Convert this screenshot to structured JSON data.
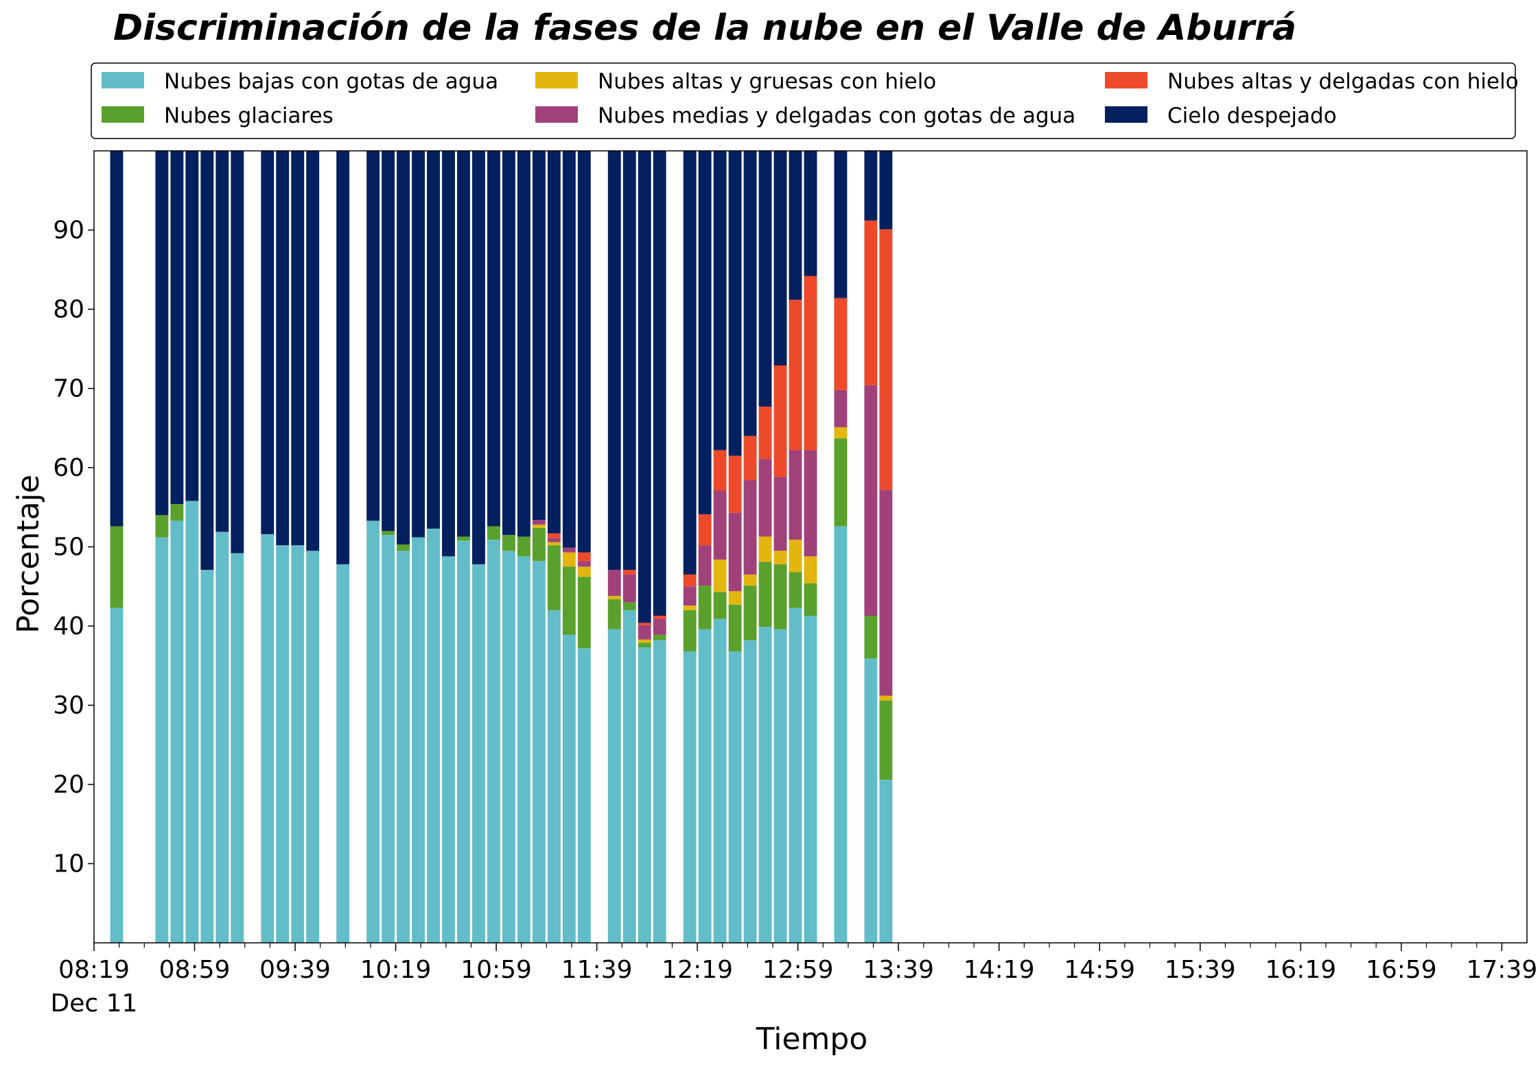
{
  "chart_data": {
    "type": "bar",
    "stacked": true,
    "title": "Discriminación de la fases de la nube en el Valle de Aburrá",
    "xlabel": "Tiempo",
    "ylabel": "Porcentaje",
    "ylim": [
      0,
      100
    ],
    "yticks": [
      10,
      20,
      30,
      40,
      50,
      60,
      70,
      80,
      90
    ],
    "xlim": [
      "08:19",
      "17:49"
    ],
    "x_date_label": "Dec 11",
    "x_major_ticks": [
      "08:19",
      "08:59",
      "09:39",
      "10:19",
      "10:59",
      "11:39",
      "12:19",
      "12:59",
      "13:39",
      "14:19",
      "14:59",
      "15:39",
      "16:19",
      "16:59",
      "17:39"
    ],
    "x_minor_ticks": [
      "08:29",
      "08:39",
      "08:49",
      "09:09",
      "09:19",
      "09:29",
      "09:49",
      "09:59",
      "10:09",
      "10:29",
      "10:39",
      "10:49",
      "11:09",
      "11:19",
      "11:29",
      "11:49",
      "11:59",
      "12:09",
      "12:29",
      "12:39",
      "12:49",
      "13:09",
      "13:19",
      "13:29",
      "13:49",
      "13:59",
      "14:09",
      "14:29",
      "14:39",
      "14:49",
      "15:09",
      "15:19",
      "15:29",
      "15:49",
      "15:59",
      "16:09",
      "16:29",
      "16:39",
      "16:49",
      "17:09",
      "17:19",
      "17:29"
    ],
    "grid": false,
    "legend_position": "top",
    "times": [
      "08:34",
      "08:52",
      "08:58",
      "09:04",
      "09:10",
      "09:16",
      "09:22",
      "09:28",
      "09:34",
      "09:40",
      "09:46",
      "09:52",
      "09:58",
      "10:04",
      "10:10",
      "10:16",
      "10:22",
      "10:28",
      "10:34",
      "10:40",
      "10:46",
      "10:52",
      "10:58",
      "11:04",
      "11:10",
      "11:16",
      "11:22",
      "11:28",
      "11:34",
      "11:40",
      "11:46",
      "11:52",
      "11:58",
      "12:04",
      "12:10",
      "12:16",
      "12:22",
      "12:28",
      "12:34",
      "12:40",
      "12:46",
      "12:52",
      "12:58",
      "13:04",
      "13:10",
      "13:16",
      "13:22",
      "13:28",
      "13:34",
      "13:40",
      "13:46",
      "13:52",
      "13:58",
      "14:04",
      "14:10",
      "14:16",
      "14:22",
      "14:28",
      "14:34",
      "14:40",
      "14:46",
      "14:52",
      "14:58",
      "15:04",
      "15:10",
      "15:16",
      "15:22",
      "15:28",
      "15:34",
      "15:40",
      "15:46",
      "15:52",
      "15:58",
      "16:04",
      "16:10",
      "16:16",
      "16:22",
      "16:28",
      "16:34",
      "16:40",
      "16:46",
      "16:52",
      "16:58",
      "17:04",
      "17:10",
      "17:16",
      "17:22",
      "17:28",
      "17:34",
      "17:40",
      "17:46"
    ],
    "bars": [
      {
        "time": "08:28",
        "values": [
          42.3,
          10.3,
          0,
          0,
          0,
          47.4
        ]
      },
      {
        "time": "08:46",
        "values": [
          51.2,
          2.8,
          0,
          0,
          0,
          46.0
        ]
      },
      {
        "time": "08:52",
        "values": [
          53.3,
          2.1,
          0,
          0,
          0,
          44.6
        ]
      },
      {
        "time": "08:58",
        "values": [
          55.8,
          0,
          0,
          0,
          0,
          44.2
        ]
      },
      {
        "time": "09:04",
        "values": [
          47.1,
          0,
          0,
          0,
          0,
          52.9
        ]
      },
      {
        "time": "09:10",
        "values": [
          51.9,
          0,
          0,
          0,
          0,
          48.1
        ]
      },
      {
        "time": "09:16",
        "values": [
          49.2,
          0,
          0,
          0,
          0,
          50.8
        ]
      },
      {
        "time": "09:28",
        "values": [
          51.6,
          0,
          0,
          0,
          0,
          48.4
        ]
      },
      {
        "time": "09:34",
        "values": [
          50.2,
          0,
          0,
          0,
          0,
          49.8
        ]
      },
      {
        "time": "09:40",
        "values": [
          50.2,
          0,
          0,
          0,
          0,
          49.8
        ]
      },
      {
        "time": "09:46",
        "values": [
          49.5,
          0,
          0,
          0,
          0,
          50.5
        ]
      },
      {
        "time": "09:58",
        "values": [
          47.8,
          0,
          0,
          0,
          0,
          52.2
        ]
      },
      {
        "time": "10:10",
        "values": [
          53.3,
          0,
          0,
          0,
          0,
          46.7
        ]
      },
      {
        "time": "10:16",
        "values": [
          51.5,
          0.5,
          0,
          0,
          0,
          48.0
        ]
      },
      {
        "time": "10:22",
        "values": [
          49.5,
          0.8,
          0,
          0,
          0,
          49.7
        ]
      },
      {
        "time": "10:28",
        "values": [
          51.2,
          0,
          0,
          0,
          0,
          48.8
        ]
      },
      {
        "time": "10:34",
        "values": [
          52.3,
          0,
          0,
          0,
          0,
          47.7
        ]
      },
      {
        "time": "10:40",
        "values": [
          48.8,
          0,
          0,
          0,
          0,
          51.2
        ]
      },
      {
        "time": "10:46",
        "values": [
          50.8,
          0.5,
          0,
          0,
          0,
          48.7
        ]
      },
      {
        "time": "10:52",
        "values": [
          47.8,
          0,
          0,
          0,
          0,
          52.2
        ]
      },
      {
        "time": "10:58",
        "values": [
          50.9,
          1.7,
          0,
          0,
          0,
          47.4
        ]
      },
      {
        "time": "11:04",
        "values": [
          49.5,
          2.0,
          0,
          0,
          0,
          48.5
        ]
      },
      {
        "time": "11:10",
        "values": [
          48.8,
          2.5,
          0,
          0,
          0,
          48.7
        ]
      },
      {
        "time": "11:16",
        "values": [
          48.2,
          4.2,
          0.4,
          0.6,
          0,
          46.6
        ]
      },
      {
        "time": "11:22",
        "values": [
          42.0,
          8.2,
          0.4,
          0.5,
          0.6,
          48.3
        ]
      },
      {
        "time": "11:28",
        "values": [
          38.9,
          8.6,
          1.8,
          0.6,
          0,
          50.1
        ]
      },
      {
        "time": "11:34",
        "values": [
          37.2,
          9.0,
          1.3,
          0.7,
          1.1,
          50.7
        ]
      },
      {
        "time": "11:46",
        "values": [
          39.6,
          3.8,
          0.4,
          3.3,
          0,
          52.9
        ]
      },
      {
        "time": "11:52",
        "values": [
          42.0,
          1.0,
          0,
          3.5,
          0.6,
          52.9
        ]
      },
      {
        "time": "11:58",
        "values": [
          37.3,
          0.6,
          0.4,
          1.8,
          0.3,
          59.6
        ]
      },
      {
        "time": "12:04",
        "values": [
          38.2,
          0.7,
          0,
          2.0,
          0.4,
          58.7
        ]
      },
      {
        "time": "12:16",
        "values": [
          36.8,
          5.2,
          0.6,
          2.4,
          1.5,
          53.5
        ]
      },
      {
        "time": "12:22",
        "values": [
          39.6,
          5.5,
          0,
          5.1,
          3.9,
          45.9
        ]
      },
      {
        "time": "12:28",
        "values": [
          40.9,
          3.4,
          4.1,
          8.7,
          5.1,
          37.8
        ]
      },
      {
        "time": "12:34",
        "values": [
          36.8,
          5.9,
          1.7,
          9.9,
          7.2,
          38.5
        ]
      },
      {
        "time": "12:40",
        "values": [
          38.2,
          6.9,
          1.4,
          11.9,
          5.6,
          36.0
        ]
      },
      {
        "time": "12:46",
        "values": [
          39.9,
          8.2,
          3.2,
          9.8,
          6.6,
          32.3
        ]
      },
      {
        "time": "12:52",
        "values": [
          39.6,
          8.2,
          1.7,
          9.3,
          14.1,
          27.1
        ]
      },
      {
        "time": "12:58",
        "values": [
          42.3,
          4.5,
          4.1,
          11.3,
          19.0,
          18.8
        ]
      },
      {
        "time": "13:04",
        "values": [
          41.3,
          4.1,
          3.4,
          13.4,
          22.0,
          15.8
        ]
      },
      {
        "time": "13:16",
        "values": [
          52.6,
          11.1,
          1.4,
          4.7,
          11.6,
          18.6
        ]
      },
      {
        "time": "13:28",
        "values": [
          35.9,
          5.4,
          0,
          29.1,
          20.8,
          8.8
        ]
      },
      {
        "time": "13:34",
        "values": [
          20.6,
          10.0,
          0.6,
          26.0,
          32.9,
          9.9
        ]
      }
    ],
    "series": [
      {
        "name": "Nubes bajas con gotas de agua",
        "color": "#63bdc8"
      },
      {
        "name": "Nubes glaciares",
        "color": "#5aa02c"
      },
      {
        "name": "Nubes altas y gruesas con hielo",
        "color": "#e2b60f"
      },
      {
        "name": "Nubes medias y delgadas con gotas de agua",
        "color": "#a0417a"
      },
      {
        "name": "Nubes altas y delgadas con hielo",
        "color": "#ec4a2b"
      },
      {
        "name": "Cielo despejado",
        "color": "#04205e"
      }
    ]
  }
}
